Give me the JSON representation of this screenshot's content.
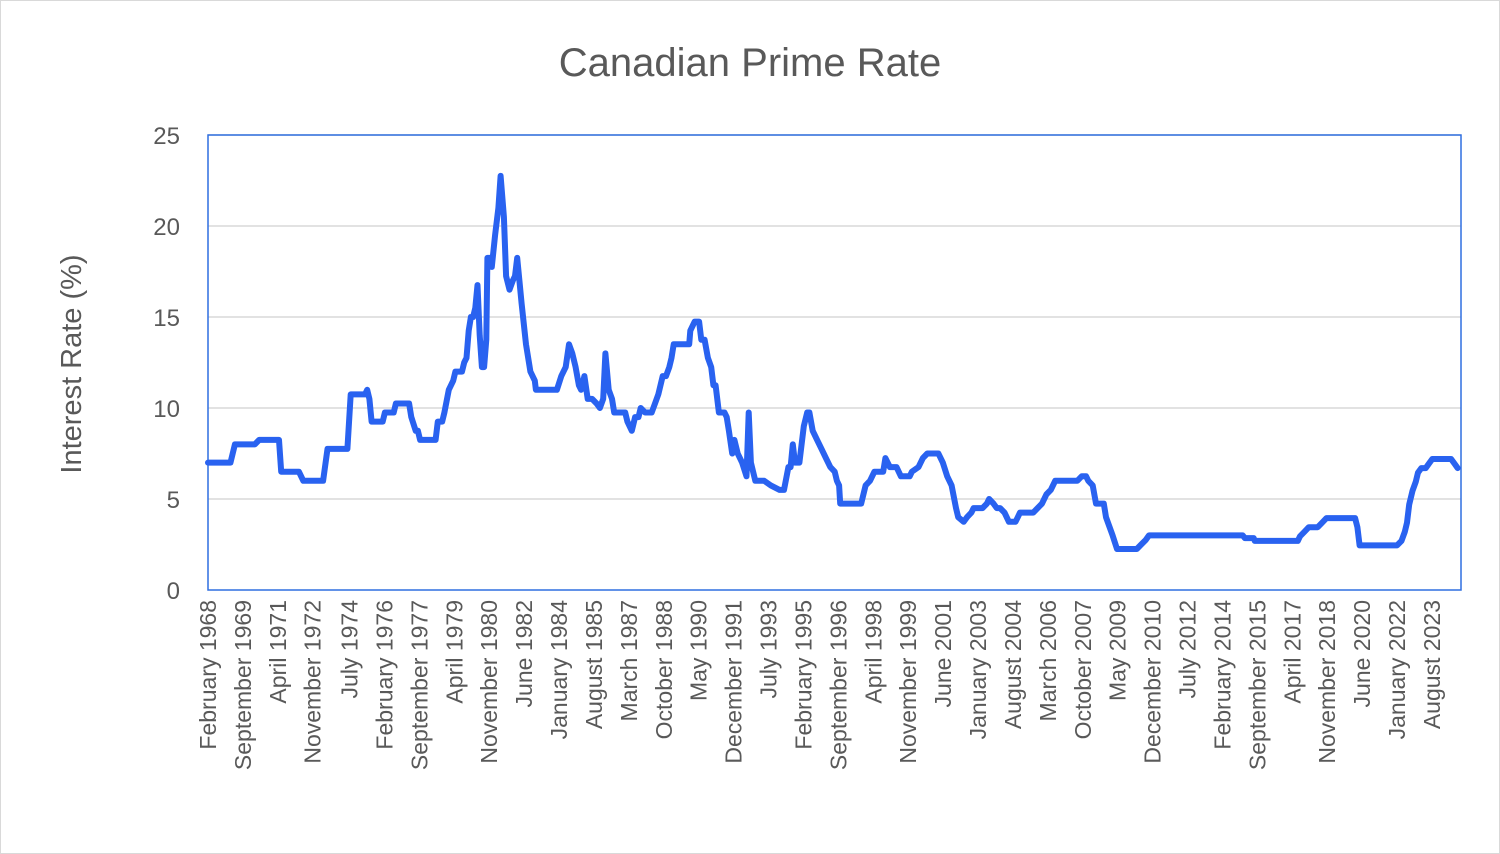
{
  "colors": {
    "series": "#2962f0",
    "text": "#595959",
    "grid": "#d9d9d9",
    "border": "#2f6fe0"
  },
  "chart_data": {
    "type": "line",
    "title": "Canadian Prime Rate",
    "xlabel": "",
    "ylabel": "Interest Rate (%)",
    "ylim": [
      0,
      25
    ],
    "yticks": [
      0,
      5,
      10,
      15,
      20,
      25
    ],
    "xlim": [
      1968.08,
      2024.9
    ],
    "grid": true,
    "legend": "none",
    "xtick_labels": [
      {
        "label": "February 1968",
        "x": 1968.08
      },
      {
        "label": "September 1969",
        "x": 1969.67
      },
      {
        "label": "April 1971",
        "x": 1971.25
      },
      {
        "label": "November 1972",
        "x": 1972.83
      },
      {
        "label": "July 1974",
        "x": 1974.5
      },
      {
        "label": "February 1976",
        "x": 1976.08
      },
      {
        "label": "September 1977",
        "x": 1977.67
      },
      {
        "label": "April 1979",
        "x": 1979.25
      },
      {
        "label": "November 1980",
        "x": 1980.83
      },
      {
        "label": "June 1982",
        "x": 1982.42
      },
      {
        "label": "January 1984",
        "x": 1984.0
      },
      {
        "label": "August 1985",
        "x": 1985.58
      },
      {
        "label": "March 1987",
        "x": 1987.17
      },
      {
        "label": "October 1988",
        "x": 1988.75
      },
      {
        "label": "May 1990",
        "x": 1990.33
      },
      {
        "label": "December 1991",
        "x": 1991.92
      },
      {
        "label": "July 1993",
        "x": 1993.5
      },
      {
        "label": "February 1995",
        "x": 1995.08
      },
      {
        "label": "September 1996",
        "x": 1996.67
      },
      {
        "label": "April 1998",
        "x": 1998.25
      },
      {
        "label": "November 1999",
        "x": 1999.83
      },
      {
        "label": "June 2001",
        "x": 2001.42
      },
      {
        "label": "January 2003",
        "x": 2003.0
      },
      {
        "label": "August 2004",
        "x": 2004.58
      },
      {
        "label": "March 2006",
        "x": 2006.17
      },
      {
        "label": "October 2007",
        "x": 2007.75
      },
      {
        "label": "May 2009",
        "x": 2009.33
      },
      {
        "label": "December 2010",
        "x": 2010.92
      },
      {
        "label": "July 2012",
        "x": 2012.5
      },
      {
        "label": "February 2014",
        "x": 2014.08
      },
      {
        "label": "September 2015",
        "x": 2015.67
      },
      {
        "label": "April 2017",
        "x": 2017.25
      },
      {
        "label": "November 2018",
        "x": 2018.83
      },
      {
        "label": "June 2020",
        "x": 2020.42
      },
      {
        "label": "January 2022",
        "x": 2022.0
      },
      {
        "label": "August 2023",
        "x": 2023.58
      }
    ],
    "series": [
      {
        "name": "Canadian Prime Rate",
        "points": [
          [
            1968.08,
            7.0
          ],
          [
            1968.9,
            7.0
          ],
          [
            1969.1,
            7.0
          ],
          [
            1969.3,
            8.0
          ],
          [
            1969.67,
            8.0
          ],
          [
            1970.2,
            8.0
          ],
          [
            1970.4,
            8.25
          ],
          [
            1971.0,
            8.25
          ],
          [
            1971.3,
            8.25
          ],
          [
            1971.4,
            6.5
          ],
          [
            1972.2,
            6.5
          ],
          [
            1972.4,
            6.0
          ],
          [
            1973.3,
            6.0
          ],
          [
            1973.5,
            7.75
          ],
          [
            1974.4,
            7.75
          ],
          [
            1974.55,
            10.75
          ],
          [
            1975.2,
            10.75
          ],
          [
            1975.3,
            11.0
          ],
          [
            1975.4,
            10.5
          ],
          [
            1975.5,
            9.25
          ],
          [
            1976.0,
            9.25
          ],
          [
            1976.1,
            9.75
          ],
          [
            1976.5,
            9.75
          ],
          [
            1976.6,
            10.25
          ],
          [
            1977.2,
            10.25
          ],
          [
            1977.3,
            9.5
          ],
          [
            1977.5,
            8.75
          ],
          [
            1977.6,
            8.75
          ],
          [
            1977.7,
            8.25
          ],
          [
            1978.4,
            8.25
          ],
          [
            1978.5,
            9.25
          ],
          [
            1978.7,
            9.25
          ],
          [
            1978.8,
            9.75
          ],
          [
            1979.0,
            11.0
          ],
          [
            1979.2,
            11.5
          ],
          [
            1979.3,
            12.0
          ],
          [
            1979.6,
            12.0
          ],
          [
            1979.7,
            12.5
          ],
          [
            1979.8,
            12.75
          ],
          [
            1979.9,
            14.25
          ],
          [
            1980.0,
            15.0
          ],
          [
            1980.1,
            15.0
          ],
          [
            1980.2,
            15.5
          ],
          [
            1980.3,
            16.75
          ],
          [
            1980.4,
            14.0
          ],
          [
            1980.5,
            12.25
          ],
          [
            1980.6,
            12.25
          ],
          [
            1980.7,
            13.75
          ],
          [
            1980.75,
            18.25
          ],
          [
            1980.85,
            18.25
          ],
          [
            1980.95,
            17.75
          ],
          [
            1981.1,
            19.5
          ],
          [
            1981.25,
            21.0
          ],
          [
            1981.35,
            22.75
          ],
          [
            1981.5,
            20.5
          ],
          [
            1981.6,
            17.25
          ],
          [
            1981.75,
            16.5
          ],
          [
            1981.9,
            17.0
          ],
          [
            1982.0,
            17.25
          ],
          [
            1982.1,
            18.25
          ],
          [
            1982.2,
            17.0
          ],
          [
            1982.3,
            15.75
          ],
          [
            1982.5,
            13.5
          ],
          [
            1982.7,
            12.0
          ],
          [
            1982.9,
            11.5
          ],
          [
            1982.95,
            11.0
          ],
          [
            1983.5,
            11.0
          ],
          [
            1983.9,
            11.0
          ],
          [
            1984.1,
            11.75
          ],
          [
            1984.3,
            12.25
          ],
          [
            1984.45,
            13.5
          ],
          [
            1984.6,
            13.0
          ],
          [
            1984.75,
            12.25
          ],
          [
            1984.9,
            11.25
          ],
          [
            1985.0,
            11.0
          ],
          [
            1985.15,
            11.75
          ],
          [
            1985.3,
            10.5
          ],
          [
            1985.5,
            10.5
          ],
          [
            1985.7,
            10.25
          ],
          [
            1985.85,
            10.0
          ],
          [
            1986.0,
            10.5
          ],
          [
            1986.1,
            13.0
          ],
          [
            1986.25,
            11.0
          ],
          [
            1986.4,
            10.5
          ],
          [
            1986.5,
            9.75
          ],
          [
            1987.0,
            9.75
          ],
          [
            1987.1,
            9.25
          ],
          [
            1987.3,
            8.75
          ],
          [
            1987.45,
            9.5
          ],
          [
            1987.6,
            9.5
          ],
          [
            1987.7,
            10.0
          ],
          [
            1987.9,
            9.75
          ],
          [
            1988.2,
            9.75
          ],
          [
            1988.35,
            10.25
          ],
          [
            1988.5,
            10.75
          ],
          [
            1988.7,
            11.75
          ],
          [
            1988.85,
            11.75
          ],
          [
            1989.0,
            12.25
          ],
          [
            1989.1,
            12.75
          ],
          [
            1989.2,
            13.5
          ],
          [
            1989.9,
            13.5
          ],
          [
            1989.95,
            14.25
          ],
          [
            1990.15,
            14.75
          ],
          [
            1990.35,
            14.75
          ],
          [
            1990.45,
            13.75
          ],
          [
            1990.6,
            13.75
          ],
          [
            1990.75,
            12.75
          ],
          [
            1990.9,
            12.25
          ],
          [
            1991.0,
            11.25
          ],
          [
            1991.1,
            11.25
          ],
          [
            1991.25,
            9.75
          ],
          [
            1991.5,
            9.75
          ],
          [
            1991.6,
            9.5
          ],
          [
            1991.7,
            8.75
          ],
          [
            1991.85,
            7.5
          ],
          [
            1991.95,
            8.25
          ],
          [
            1992.1,
            7.5
          ],
          [
            1992.3,
            7.0
          ],
          [
            1992.5,
            6.25
          ],
          [
            1992.6,
            9.75
          ],
          [
            1992.7,
            7.0
          ],
          [
            1992.8,
            6.5
          ],
          [
            1992.9,
            6.0
          ],
          [
            1993.3,
            6.0
          ],
          [
            1993.6,
            5.75
          ],
          [
            1994.0,
            5.5
          ],
          [
            1994.2,
            5.5
          ],
          [
            1994.4,
            6.75
          ],
          [
            1994.5,
            6.75
          ],
          [
            1994.6,
            8.0
          ],
          [
            1994.7,
            7.0
          ],
          [
            1994.9,
            7.0
          ],
          [
            1995.1,
            9.0
          ],
          [
            1995.25,
            9.75
          ],
          [
            1995.35,
            9.75
          ],
          [
            1995.5,
            8.75
          ],
          [
            1995.7,
            8.25
          ],
          [
            1995.9,
            7.75
          ],
          [
            1996.1,
            7.25
          ],
          [
            1996.3,
            6.75
          ],
          [
            1996.5,
            6.5
          ],
          [
            1996.6,
            6.0
          ],
          [
            1996.7,
            5.75
          ],
          [
            1996.75,
            4.75
          ],
          [
            1997.5,
            4.75
          ],
          [
            1997.7,
            4.75
          ],
          [
            1997.9,
            5.75
          ],
          [
            1998.1,
            6.0
          ],
          [
            1998.3,
            6.5
          ],
          [
            1998.7,
            6.5
          ],
          [
            1998.8,
            7.25
          ],
          [
            1999.0,
            6.75
          ],
          [
            1999.3,
            6.75
          ],
          [
            1999.5,
            6.25
          ],
          [
            1999.9,
            6.25
          ],
          [
            2000.0,
            6.5
          ],
          [
            2000.3,
            6.75
          ],
          [
            2000.5,
            7.25
          ],
          [
            2000.7,
            7.5
          ],
          [
            2001.2,
            7.5
          ],
          [
            2001.4,
            7.0
          ],
          [
            2001.6,
            6.25
          ],
          [
            2001.8,
            5.75
          ],
          [
            2002.0,
            4.5
          ],
          [
            2002.1,
            4.0
          ],
          [
            2002.35,
            3.75
          ],
          [
            2002.5,
            4.0
          ],
          [
            2002.7,
            4.25
          ],
          [
            2002.8,
            4.5
          ],
          [
            2003.2,
            4.5
          ],
          [
            2003.4,
            4.75
          ],
          [
            2003.5,
            5.0
          ],
          [
            2003.7,
            4.75
          ],
          [
            2003.85,
            4.5
          ],
          [
            2004.0,
            4.5
          ],
          [
            2004.2,
            4.25
          ],
          [
            2004.3,
            4.0
          ],
          [
            2004.4,
            3.75
          ],
          [
            2004.7,
            3.75
          ],
          [
            2004.8,
            4.0
          ],
          [
            2004.9,
            4.25
          ],
          [
            2005.5,
            4.25
          ],
          [
            2005.7,
            4.5
          ],
          [
            2005.9,
            4.75
          ],
          [
            2006.1,
            5.25
          ],
          [
            2006.3,
            5.5
          ],
          [
            2006.5,
            6.0
          ],
          [
            2007.5,
            6.0
          ],
          [
            2007.7,
            6.25
          ],
          [
            2007.9,
            6.25
          ],
          [
            2008.0,
            6.0
          ],
          [
            2008.2,
            5.75
          ],
          [
            2008.35,
            4.75
          ],
          [
            2008.7,
            4.75
          ],
          [
            2008.8,
            4.0
          ],
          [
            2008.95,
            3.5
          ],
          [
            2009.1,
            3.0
          ],
          [
            2009.3,
            2.25
          ],
          [
            2010.2,
            2.25
          ],
          [
            2010.4,
            2.5
          ],
          [
            2010.6,
            2.75
          ],
          [
            2010.75,
            3.0
          ],
          [
            2015.0,
            3.0
          ],
          [
            2015.1,
            2.85
          ],
          [
            2015.5,
            2.85
          ],
          [
            2015.55,
            2.7
          ],
          [
            2017.5,
            2.7
          ],
          [
            2017.6,
            2.95
          ],
          [
            2017.8,
            3.2
          ],
          [
            2018.0,
            3.45
          ],
          [
            2018.4,
            3.45
          ],
          [
            2018.6,
            3.7
          ],
          [
            2018.8,
            3.95
          ],
          [
            2020.1,
            3.95
          ],
          [
            2020.2,
            3.45
          ],
          [
            2020.25,
            2.95
          ],
          [
            2020.3,
            2.45
          ],
          [
            2022.0,
            2.45
          ],
          [
            2022.2,
            2.7
          ],
          [
            2022.35,
            3.2
          ],
          [
            2022.45,
            3.7
          ],
          [
            2022.55,
            4.7
          ],
          [
            2022.7,
            5.45
          ],
          [
            2022.85,
            5.95
          ],
          [
            2022.95,
            6.45
          ],
          [
            2023.1,
            6.7
          ],
          [
            2023.3,
            6.7
          ],
          [
            2023.45,
            6.95
          ],
          [
            2023.6,
            7.2
          ],
          [
            2024.45,
            7.2
          ],
          [
            2024.6,
            6.95
          ],
          [
            2024.75,
            6.7
          ]
        ]
      }
    ]
  }
}
